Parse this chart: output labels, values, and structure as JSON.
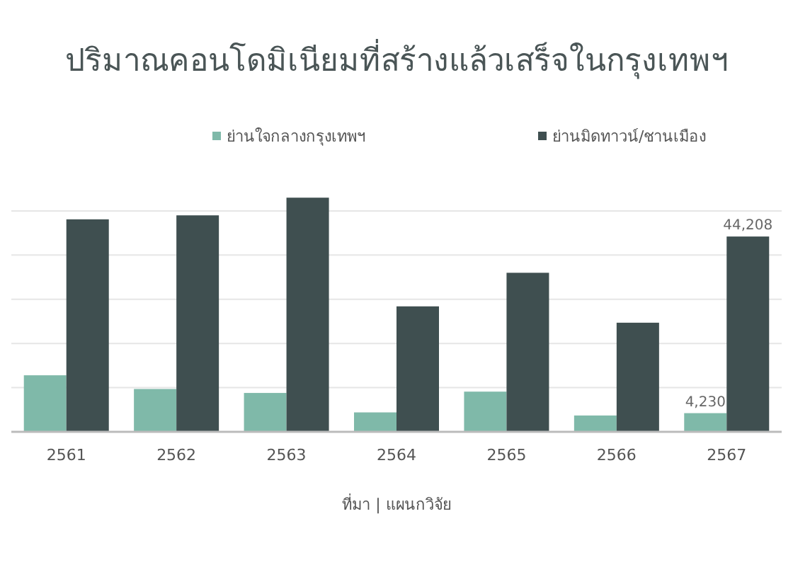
{
  "chart_data": {
    "type": "bar",
    "title": "ปริมาณคอนโดมิเนียมที่สร้างแล้วเสร็จในกรุงเทพฯ",
    "categories": [
      "2561",
      "2562",
      "2563",
      "2564",
      "2565",
      "2566",
      "2567"
    ],
    "series": [
      {
        "name": "ย่านใจกลางกรุงเทพฯ",
        "color": "#7fb9a9",
        "values": [
          12800,
          9700,
          8800,
          4400,
          9100,
          3700,
          4230
        ],
        "value_labels": [
          null,
          null,
          null,
          null,
          null,
          null,
          "4,230"
        ]
      },
      {
        "name": "ย่านมิดทาวน์/ชานเมือง",
        "color": "#3f4f50",
        "values": [
          48100,
          49000,
          53000,
          28400,
          36000,
          24700,
          44208
        ],
        "value_labels": [
          null,
          null,
          null,
          null,
          null,
          null,
          "44,208"
        ]
      }
    ],
    "yticks": [
      {
        "value": 0,
        "label": null
      },
      {
        "value": 10000,
        "label": null
      },
      {
        "value": 20000,
        "label": null
      },
      {
        "value": 30000,
        "label": null
      },
      {
        "value": 40000,
        "label": null
      },
      {
        "value": 50000,
        "label": null
      }
    ],
    "grid": "y",
    "legend": "top",
    "tick_labels": "x",
    "annotations": [
      "ที่มา | แผนกวิจัย"
    ]
  }
}
